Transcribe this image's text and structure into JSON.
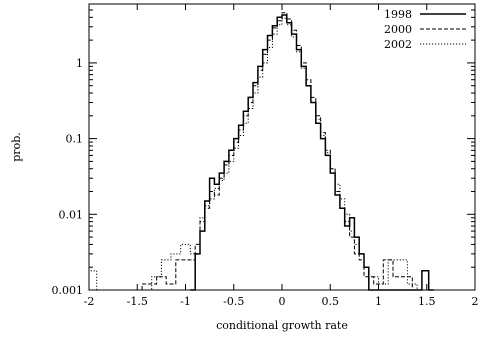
{
  "chart_data": {
    "type": "line",
    "xlabel": "conditional growth rate",
    "ylabel": "prob.",
    "xlim": [
      -2,
      2
    ],
    "ylim": [
      0.001,
      6
    ],
    "yscale": "log",
    "grid": false,
    "legend_position": "top-right",
    "x_ticks": [
      "-2",
      "-1.5",
      "-1",
      "-0.5",
      "0",
      "0.5",
      "1",
      "1.5",
      "2"
    ],
    "y_ticks": [
      "0.001",
      "0.01",
      "0.1",
      "1"
    ],
    "series": [
      {
        "name": "1998",
        "style": "solid",
        "steps": [
          [
            -0.95,
            0.001
          ],
          [
            -0.9,
            0.003
          ],
          [
            -0.85,
            0.006
          ],
          [
            -0.8,
            0.015
          ],
          [
            -0.75,
            0.03
          ],
          [
            -0.7,
            0.025
          ],
          [
            -0.65,
            0.035
          ],
          [
            -0.6,
            0.05
          ],
          [
            -0.55,
            0.07
          ],
          [
            -0.5,
            0.1
          ],
          [
            -0.45,
            0.15
          ],
          [
            -0.4,
            0.23
          ],
          [
            -0.35,
            0.35
          ],
          [
            -0.3,
            0.55
          ],
          [
            -0.25,
            0.9
          ],
          [
            -0.2,
            1.5
          ],
          [
            -0.15,
            2.3
          ],
          [
            -0.1,
            3.1
          ],
          [
            -0.05,
            4.0
          ],
          [
            0.0,
            4.3
          ],
          [
            0.05,
            3.4
          ],
          [
            0.1,
            2.4
          ],
          [
            0.15,
            1.5
          ],
          [
            0.2,
            0.9
          ],
          [
            0.25,
            0.5
          ],
          [
            0.3,
            0.3
          ],
          [
            0.35,
            0.16
          ],
          [
            0.4,
            0.1
          ],
          [
            0.45,
            0.06
          ],
          [
            0.5,
            0.035
          ],
          [
            0.55,
            0.018
          ],
          [
            0.6,
            0.012
          ],
          [
            0.65,
            0.007
          ],
          [
            0.7,
            0.009
          ],
          [
            0.75,
            0.005
          ],
          [
            0.8,
            0.003
          ],
          [
            0.85,
            0.002
          ],
          [
            0.9,
            0.001
          ],
          [
            1.0,
            0.001
          ],
          [
            1.45,
            0.0018
          ],
          [
            1.52,
            0.001
          ]
        ]
      },
      {
        "name": "2000",
        "style": "dashed",
        "steps": [
          [
            -1.45,
            0.0012
          ],
          [
            -1.3,
            0.0015
          ],
          [
            -1.2,
            0.0012
          ],
          [
            -1.1,
            0.0025
          ],
          [
            -1.0,
            0.0025
          ],
          [
            -0.9,
            0.004
          ],
          [
            -0.85,
            0.008
          ],
          [
            -0.8,
            0.012
          ],
          [
            -0.75,
            0.02
          ],
          [
            -0.7,
            0.018
          ],
          [
            -0.65,
            0.03
          ],
          [
            -0.6,
            0.045
          ],
          [
            -0.55,
            0.06
          ],
          [
            -0.5,
            0.09
          ],
          [
            -0.45,
            0.13
          ],
          [
            -0.4,
            0.2
          ],
          [
            -0.35,
            0.3
          ],
          [
            -0.3,
            0.5
          ],
          [
            -0.25,
            0.8
          ],
          [
            -0.2,
            1.3
          ],
          [
            -0.15,
            2.0
          ],
          [
            -0.1,
            2.9
          ],
          [
            -0.05,
            3.6
          ],
          [
            0.0,
            4.6
          ],
          [
            0.05,
            3.8
          ],
          [
            0.1,
            2.7
          ],
          [
            0.15,
            1.7
          ],
          [
            0.2,
            1.0
          ],
          [
            0.25,
            0.6
          ],
          [
            0.3,
            0.35
          ],
          [
            0.35,
            0.2
          ],
          [
            0.4,
            0.12
          ],
          [
            0.45,
            0.07
          ],
          [
            0.5,
            0.04
          ],
          [
            0.55,
            0.02
          ],
          [
            0.6,
            0.012
          ],
          [
            0.65,
            0.008
          ],
          [
            0.7,
            0.005
          ],
          [
            0.75,
            0.003
          ],
          [
            0.8,
            0.0025
          ],
          [
            0.85,
            0.0015
          ],
          [
            0.95,
            0.0012
          ],
          [
            1.05,
            0.0025
          ],
          [
            1.15,
            0.0015
          ],
          [
            1.25,
            0.0015
          ],
          [
            1.35,
            0.001
          ]
        ]
      },
      {
        "name": "2002",
        "style": "dotted",
        "steps": [
          [
            -2.0,
            0.0018
          ],
          [
            -1.92,
            0.001
          ],
          [
            -1.35,
            0.0015
          ],
          [
            -1.25,
            0.0025
          ],
          [
            -1.15,
            0.003
          ],
          [
            -1.05,
            0.004
          ],
          [
            -0.95,
            0.003
          ],
          [
            -0.85,
            0.009
          ],
          [
            -0.8,
            0.013
          ],
          [
            -0.75,
            0.016
          ],
          [
            -0.7,
            0.022
          ],
          [
            -0.65,
            0.028
          ],
          [
            -0.6,
            0.035
          ],
          [
            -0.55,
            0.05
          ],
          [
            -0.5,
            0.075
          ],
          [
            -0.45,
            0.11
          ],
          [
            -0.4,
            0.16
          ],
          [
            -0.35,
            0.25
          ],
          [
            -0.3,
            0.4
          ],
          [
            -0.25,
            0.65
          ],
          [
            -0.2,
            1.0
          ],
          [
            -0.15,
            1.6
          ],
          [
            -0.1,
            2.4
          ],
          [
            -0.05,
            3.2
          ],
          [
            0.0,
            3.9
          ],
          [
            0.05,
            3.2
          ],
          [
            0.1,
            2.2
          ],
          [
            0.15,
            1.4
          ],
          [
            0.2,
            0.85
          ],
          [
            0.25,
            0.5
          ],
          [
            0.3,
            0.3
          ],
          [
            0.35,
            0.18
          ],
          [
            0.4,
            0.11
          ],
          [
            0.45,
            0.065
          ],
          [
            0.5,
            0.04
          ],
          [
            0.55,
            0.025
          ],
          [
            0.6,
            0.016
          ],
          [
            0.65,
            0.01
          ],
          [
            0.7,
            0.006
          ],
          [
            0.75,
            0.004
          ],
          [
            0.8,
            0.003
          ],
          [
            0.85,
            0.002
          ],
          [
            0.9,
            0.0015
          ],
          [
            1.0,
            0.0012
          ],
          [
            1.1,
            0.0025
          ],
          [
            1.2,
            0.0025
          ],
          [
            1.3,
            0.0012
          ],
          [
            1.4,
            0.001
          ]
        ]
      }
    ]
  }
}
